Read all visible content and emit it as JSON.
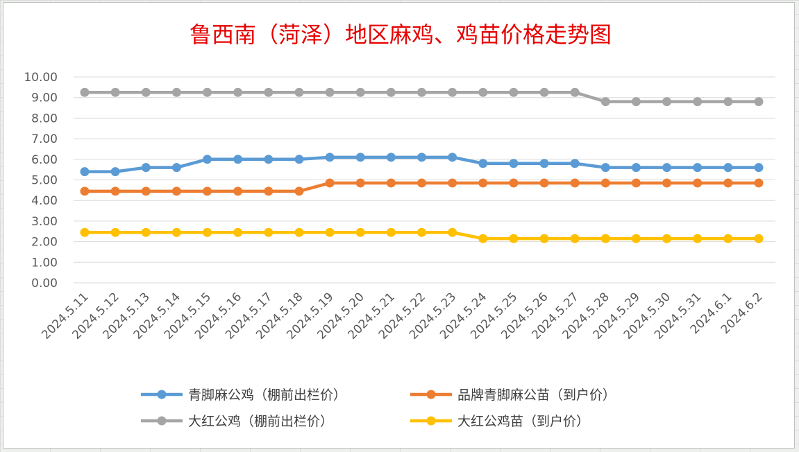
{
  "chart_data": {
    "type": "line",
    "title": "鲁西南（菏泽）地区麻鸡、鸡苗价格走势图",
    "categories": [
      "2024.5.11",
      "2024.5.12",
      "2024.5.13",
      "2024.5.14",
      "2024.5.15",
      "2024.5.16",
      "2024.5.17",
      "2024.5.18",
      "2024.5.19",
      "2024.5.20",
      "2024.5.21",
      "2024.5.22",
      "2024.5.23",
      "2024.5.24",
      "2024.5.25",
      "2024.5.26",
      "2024.5.27",
      "2024.5.28",
      "2024.5.29",
      "2024.5.30",
      "2024.5.31",
      "2024.6.1",
      "2024.6.2"
    ],
    "y_ticks": [
      "0.00",
      "1.00",
      "2.00",
      "3.00",
      "4.00",
      "5.00",
      "6.00",
      "7.00",
      "8.00",
      "9.00",
      "10.00"
    ],
    "ylim": [
      0,
      10
    ],
    "grid": true,
    "legend_position": "bottom",
    "series": [
      {
        "name": "青脚麻公鸡（棚前出栏价）",
        "color": "#5b9bd5",
        "values": [
          5.4,
          5.4,
          5.6,
          5.6,
          6.0,
          6.0,
          6.0,
          6.0,
          6.1,
          6.1,
          6.1,
          6.1,
          6.1,
          5.8,
          5.8,
          5.8,
          5.8,
          5.6,
          5.6,
          5.6,
          5.6,
          5.6,
          5.6
        ]
      },
      {
        "name": "品牌青脚麻公苗（到户价）",
        "color": "#ed7d31",
        "values": [
          4.45,
          4.45,
          4.45,
          4.45,
          4.45,
          4.45,
          4.45,
          4.45,
          4.85,
          4.85,
          4.85,
          4.85,
          4.85,
          4.85,
          4.85,
          4.85,
          4.85,
          4.85,
          4.85,
          4.85,
          4.85,
          4.85,
          4.85
        ]
      },
      {
        "name": "大红公鸡（棚前出栏价）",
        "color": "#a5a5a5",
        "values": [
          9.25,
          9.25,
          9.25,
          9.25,
          9.25,
          9.25,
          9.25,
          9.25,
          9.25,
          9.25,
          9.25,
          9.25,
          9.25,
          9.25,
          9.25,
          9.25,
          9.25,
          8.8,
          8.8,
          8.8,
          8.8,
          8.8,
          8.8
        ]
      },
      {
        "name": "大红公鸡苗（到户价）",
        "color": "#ffc000",
        "values": [
          2.45,
          2.45,
          2.45,
          2.45,
          2.45,
          2.45,
          2.45,
          2.45,
          2.45,
          2.45,
          2.45,
          2.45,
          2.45,
          2.15,
          2.15,
          2.15,
          2.15,
          2.15,
          2.15,
          2.15,
          2.15,
          2.15,
          2.15
        ]
      }
    ]
  }
}
